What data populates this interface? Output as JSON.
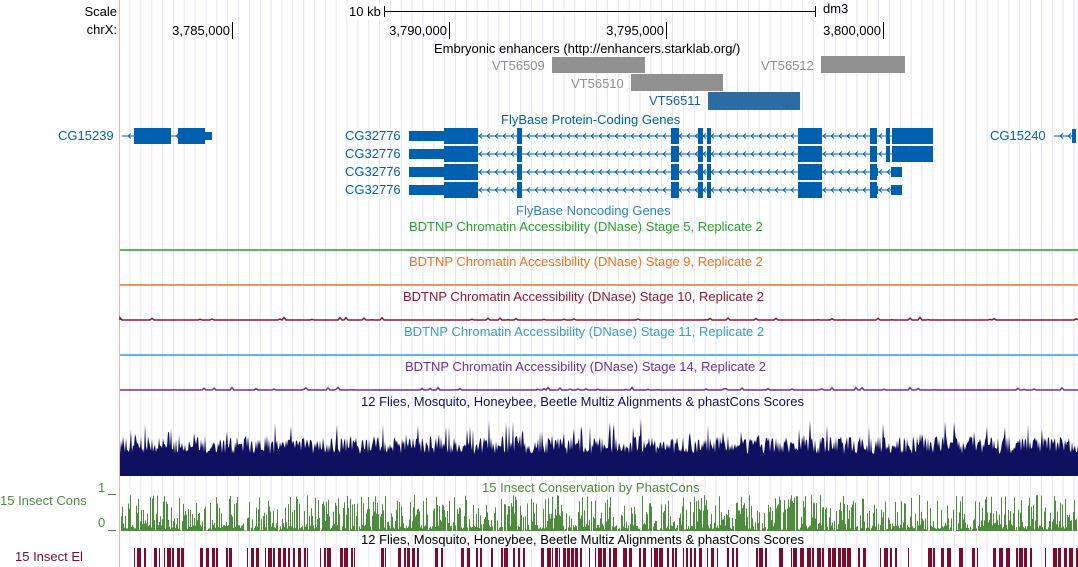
{
  "header": {
    "scale_label": "Scale",
    "chrom_label": "chrX:",
    "scale_bar_label": "10 kb",
    "assembly": "dm3",
    "positions": [
      "3,785,000",
      "3,790,000",
      "3,795,000",
      "3,800,000"
    ]
  },
  "tracks": {
    "enhancers": {
      "title": "Embryonic enhancers (http://enhancers.starklab.org/)",
      "items": [
        "VT56509",
        "VT56510",
        "VT56511",
        "VT56512"
      ],
      "colors": {
        "gray": "#909090",
        "highlight": "#2f6aa0"
      }
    },
    "protein_coding": {
      "title": "FlyBase Protein-Coding Genes",
      "genes": [
        "CG15239",
        "CG32776",
        "CG32776",
        "CG32776",
        "CG32776",
        "CG15240"
      ],
      "color": "#0060b0"
    },
    "noncoding": {
      "title": "FlyBase Noncoding Genes"
    },
    "dnase": [
      {
        "title": "BDTNP Chromatin Accessibility (DNase) Stage 5, Replicate 2",
        "color": "#2aa02a"
      },
      {
        "title": "BDTNP Chromatin Accessibility (DNase) Stage 9, Replicate 2",
        "color": "#f07020"
      },
      {
        "title": "BDTNP Chromatin Accessibility (DNase) Stage 10, Replicate 2",
        "color": "#8b1a2a"
      },
      {
        "title": "BDTNP Chromatin Accessibility (DNase) Stage 11, Replicate 2",
        "color": "#30a0d0"
      },
      {
        "title": "BDTNP Chromatin Accessibility (DNase) Stage 14, Replicate 2",
        "color": "#7030a0"
      }
    ],
    "multiz": {
      "title": "12 Flies, Mosquito, Honeybee, Beetle Multiz Alignments & phastCons Scores",
      "color": "#101060"
    },
    "phastcons": {
      "title": "15 Insect Conservation by PhastCons",
      "side_label": "15 Insect Cons",
      "y_max": "1",
      "y_min": "0",
      "color": "#4c8c3c"
    },
    "elements": {
      "title": "12 Flies, Mosquito, Honeybee, Beetle Multiz Alignments & phastCons Scores",
      "side_label": "15 Insect El",
      "color": "#7a0c2c"
    }
  }
}
